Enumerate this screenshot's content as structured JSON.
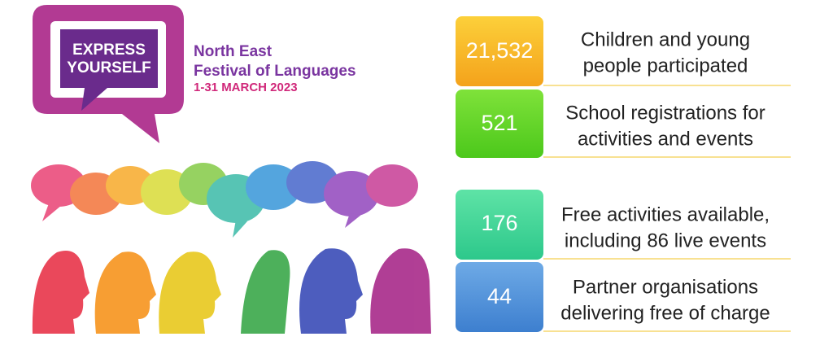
{
  "logo": {
    "title_lines": [
      "EXPRESS",
      "YOURSELF"
    ],
    "name_lines": [
      "North East",
      "Festival of Languages"
    ],
    "dates": "1-31 MARCH 2023"
  },
  "stats": [
    {
      "value": "21,532",
      "lines": [
        "Children and young",
        "people participated"
      ]
    },
    {
      "value": "521",
      "lines": [
        "School registrations for",
        "activities and events"
      ]
    },
    {
      "value": "176",
      "lines": [
        "Free activities available,",
        "including 86 live events"
      ]
    },
    {
      "value": "44",
      "lines": [
        "Partner organisations",
        "delivering free of charge"
      ]
    }
  ]
}
